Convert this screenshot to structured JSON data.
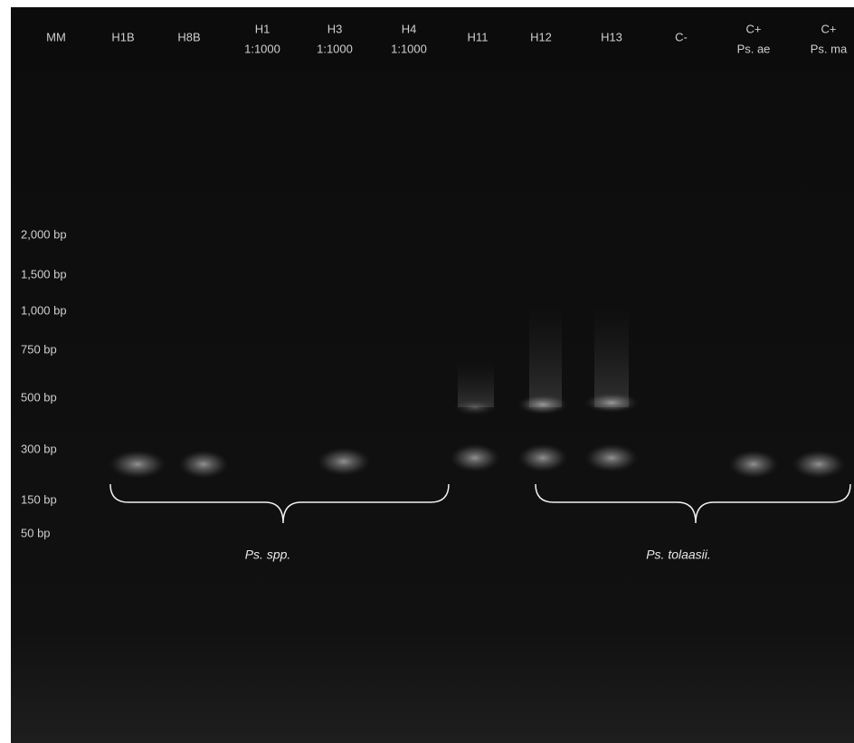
{
  "lanes": [
    {
      "lines": [
        "MM"
      ]
    },
    {
      "lines": [
        "H1B"
      ]
    },
    {
      "lines": [
        "H8B"
      ]
    },
    {
      "lines": [
        "H1",
        "1:1000"
      ]
    },
    {
      "lines": [
        "H3",
        "1:1000"
      ]
    },
    {
      "lines": [
        "H4",
        "1:1000"
      ]
    },
    {
      "lines": [
        "H11"
      ]
    },
    {
      "lines": [
        "H12"
      ]
    },
    {
      "lines": [
        "H13"
      ]
    },
    {
      "lines": [
        "C-"
      ]
    },
    {
      "lines": [
        "C+",
        "Ps. ae"
      ]
    },
    {
      "lines": [
        "C+",
        "Ps. ma"
      ]
    }
  ],
  "markers": [
    "2,000 bp",
    "1,500 bp",
    "1,000 bp",
    "750 bp",
    "500 bp",
    "300 bp",
    "150 bp",
    "50 bp"
  ],
  "groups": [
    "Ps. spp.",
    "Ps. tolaasii."
  ]
}
